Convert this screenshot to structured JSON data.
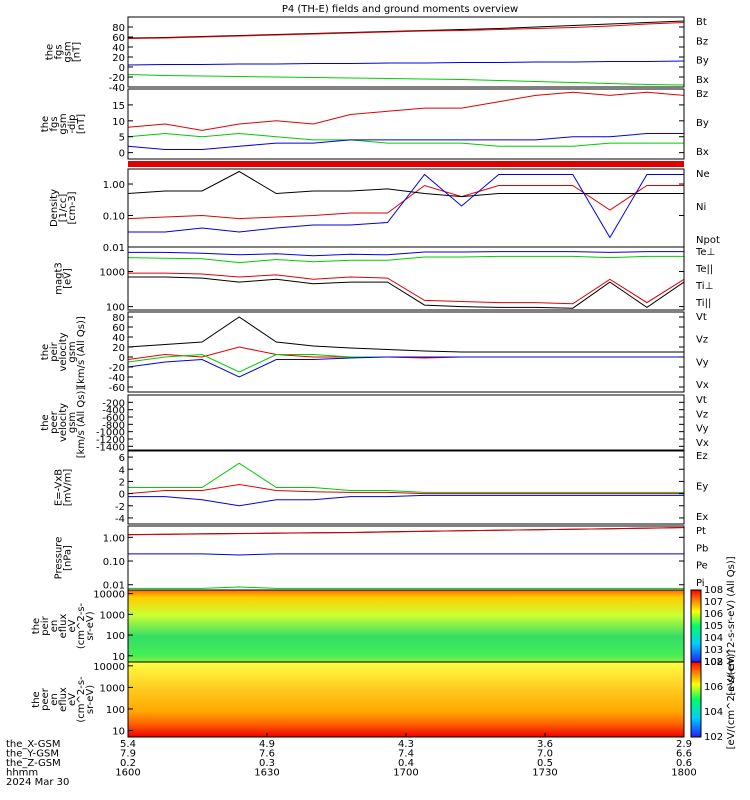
{
  "title": "P4 (TH-E) fields and ground moments overview",
  "colors": {
    "black": "#000000",
    "red": "#e00000",
    "green": "#00cc00",
    "blue": "#0000dd",
    "blue_light": "#3030ff"
  },
  "chart_data": [
    {
      "type": "line",
      "panel": "fgs_gsm",
      "ylabel": [
        "the",
        "fgs",
        "gsm",
        "[nT]"
      ],
      "ylim": [
        -40,
        100
      ],
      "yticks": [
        -40,
        -20,
        0,
        20,
        40,
        60,
        80
      ],
      "series": [
        {
          "name": "Bt",
          "color": "black",
          "values": [
            58,
            59,
            61,
            63,
            65,
            67,
            69,
            71,
            73,
            75,
            77,
            80,
            83,
            86,
            89,
            92
          ]
        },
        {
          "name": "Bz",
          "color": "red",
          "values": [
            57,
            58,
            60,
            62,
            64,
            66,
            68,
            70,
            72,
            73,
            75,
            77,
            79,
            82,
            86,
            89
          ]
        },
        {
          "name": "By",
          "color": "green",
          "values": [
            -15,
            -17,
            -18,
            -19,
            -20,
            -21,
            -22,
            -23,
            -24,
            -25,
            -27,
            -29,
            -31,
            -33,
            -35,
            -36
          ]
        },
        {
          "name": "Bx",
          "color": "blue",
          "values": [
            4,
            5,
            5,
            6,
            6,
            7,
            7,
            8,
            8,
            9,
            9,
            10,
            10,
            11,
            11,
            12
          ]
        }
      ]
    },
    {
      "type": "line",
      "panel": "fgs_gsm_dip",
      "ylabel": [
        "the",
        "fgs",
        "gsm",
        "-dip",
        "[nT]"
      ],
      "ylim": [
        -2,
        20
      ],
      "yticks": [
        0,
        5,
        10,
        15
      ],
      "series": [
        {
          "name": "Bz",
          "color": "red",
          "values": [
            8,
            9,
            7,
            9,
            10,
            9,
            12,
            13,
            14,
            14,
            16,
            18,
            19,
            18,
            19,
            18
          ]
        },
        {
          "name": "By",
          "color": "green",
          "values": [
            5,
            6,
            5,
            6,
            5,
            4,
            4,
            3,
            3,
            3,
            2,
            2,
            2,
            3,
            3,
            3
          ]
        },
        {
          "name": "Bx",
          "color": "blue",
          "values": [
            2,
            1,
            1,
            2,
            3,
            3,
            4,
            4,
            4,
            4,
            4,
            4,
            5,
            5,
            6,
            6
          ]
        }
      ]
    },
    {
      "type": "line",
      "panel": "density",
      "log": true,
      "ylabel": [
        "Density",
        "[1/cc]",
        "[cm-3]"
      ],
      "ylim": [
        0.01,
        3
      ],
      "yticks": [
        "0.01",
        "0.10",
        "1.00"
      ],
      "series": [
        {
          "name": "Ne",
          "color": "red",
          "values": [
            0.08,
            0.09,
            0.1,
            0.08,
            0.09,
            0.1,
            0.12,
            0.12,
            0.9,
            0.4,
            0.9,
            0.9,
            0.9,
            0.15,
            0.9,
            0.9
          ]
        },
        {
          "name": "Ni",
          "color": "black",
          "values": [
            0.5,
            0.6,
            0.6,
            2.5,
            0.5,
            0.6,
            0.6,
            0.7,
            0.5,
            0.4,
            0.5,
            0.5,
            0.5,
            0.5,
            0.5,
            0.5
          ]
        },
        {
          "name": "Npot",
          "color": "blue",
          "values": [
            0.03,
            0.03,
            0.04,
            0.03,
            0.04,
            0.05,
            0.05,
            0.06,
            2,
            0.2,
            2,
            2,
            2,
            0.02,
            2,
            2
          ]
        }
      ]
    },
    {
      "type": "line",
      "panel": "temperature",
      "log": true,
      "ylabel": [
        "magt3",
        "[eV]"
      ],
      "ylim": [
        80,
        5000
      ],
      "yticks": [
        "100",
        "1000"
      ],
      "series": [
        {
          "name": "Te⊥",
          "color": "red",
          "values": [
            900,
            900,
            850,
            700,
            800,
            600,
            700,
            650,
            150,
            140,
            130,
            130,
            120,
            600,
            130,
            600
          ]
        },
        {
          "name": "Te||",
          "color": "black",
          "values": [
            700,
            700,
            650,
            500,
            600,
            450,
            500,
            500,
            110,
            100,
            95,
            95,
            90,
            500,
            95,
            500
          ]
        },
        {
          "name": "Ti⊥",
          "color": "blue",
          "values": [
            3500,
            3500,
            3300,
            3000,
            3200,
            2800,
            3100,
            3000,
            3600,
            3600,
            3700,
            3700,
            3700,
            3500,
            3700,
            3700
          ]
        },
        {
          "name": "Ti||",
          "color": "green",
          "values": [
            2500,
            2400,
            2300,
            1800,
            2200,
            1900,
            2100,
            2100,
            2600,
            2600,
            2700,
            2700,
            2700,
            2500,
            2700,
            2700
          ]
        }
      ]
    },
    {
      "type": "line",
      "panel": "peir_velocity",
      "ylabel": [
        "the",
        "peir",
        "velocity",
        "gsm",
        "[km/s (All Qs)]"
      ],
      "ylim": [
        -70,
        90
      ],
      "yticks": [
        -60,
        -40,
        -20,
        0,
        20,
        40,
        60,
        80
      ],
      "series": [
        {
          "name": "Vt",
          "color": "black",
          "values": [
            20,
            25,
            30,
            80,
            30,
            22,
            18,
            15,
            12,
            10,
            10,
            10,
            10,
            10,
            10,
            10
          ]
        },
        {
          "name": "Vz",
          "color": "red",
          "values": [
            -5,
            5,
            0,
            20,
            5,
            0,
            0,
            0,
            -2,
            0,
            0,
            0,
            0,
            0,
            0,
            0
          ]
        },
        {
          "name": "Vy",
          "color": "green",
          "values": [
            -10,
            0,
            5,
            -30,
            5,
            5,
            0,
            0,
            0,
            0,
            0,
            0,
            0,
            0,
            0,
            0
          ]
        },
        {
          "name": "Vx",
          "color": "blue",
          "values": [
            -20,
            -10,
            -5,
            -40,
            -5,
            -5,
            -2,
            0,
            0,
            0,
            0,
            0,
            0,
            0,
            0,
            0
          ]
        }
      ]
    },
    {
      "type": "line",
      "panel": "peer_velocity",
      "ylabel": [
        "the",
        "peer",
        "velocity",
        "gsm",
        "[km/s (All Qs)]"
      ],
      "ylim": [
        -1500,
        0
      ],
      "yticks": [
        -1400,
        -1200,
        -1000,
        -800,
        -600,
        -400,
        -200
      ],
      "series": [
        {
          "name": "Vt",
          "color": "black",
          "values": []
        },
        {
          "name": "Vz",
          "color": "red",
          "values": []
        },
        {
          "name": "Vy",
          "color": "green",
          "values": []
        },
        {
          "name": "Vx",
          "color": "blue",
          "values": []
        }
      ]
    },
    {
      "type": "line",
      "panel": "e_field",
      "ylabel": [
        "E=-VxB",
        "[mV/m]"
      ],
      "ylim": [
        -5,
        7
      ],
      "yticks": [
        -4,
        -2,
        0,
        2,
        4,
        6
      ],
      "series": [
        {
          "name": "Ez",
          "color": "red",
          "values": [
            0,
            0.5,
            0.5,
            1.5,
            0.5,
            0.3,
            0.2,
            0.2,
            0,
            0,
            0,
            0,
            0,
            0,
            0,
            0
          ]
        },
        {
          "name": "Ey",
          "color": "green",
          "values": [
            1,
            1,
            1,
            5,
            1,
            1,
            0.5,
            0.5,
            0.2,
            0.2,
            0.2,
            0.2,
            0.2,
            0.2,
            0.2,
            0.2
          ]
        },
        {
          "name": "Ex",
          "color": "blue",
          "values": [
            -0.5,
            -0.5,
            -1,
            -2,
            -1,
            -1,
            -0.5,
            -0.5,
            -0.3,
            -0.3,
            -0.3,
            -0.3,
            -0.3,
            -0.3,
            -0.3,
            -0.3
          ]
        }
      ]
    },
    {
      "type": "line",
      "panel": "pressure",
      "log": true,
      "ylabel": [
        "Pressure",
        "[nPa]"
      ],
      "ylim": [
        0.006,
        3
      ],
      "yticks": [
        "0.01",
        "0.10",
        "1.00"
      ],
      "series": [
        {
          "name": "Pt",
          "color": "black",
          "values": [
            1.3,
            1.35,
            1.4,
            1.45,
            1.5,
            1.55,
            1.6,
            1.7,
            1.8,
            1.9,
            2,
            2.1,
            2.2,
            2.3,
            2.45,
            2.6
          ]
        },
        {
          "name": "Pb",
          "color": "red",
          "values": [
            1.28,
            1.33,
            1.38,
            1.43,
            1.48,
            1.53,
            1.58,
            1.68,
            1.78,
            1.88,
            1.98,
            2.08,
            2.18,
            2.28,
            2.43,
            2.58
          ]
        },
        {
          "name": "Pe",
          "color": "green",
          "values": [
            0.007,
            0.007,
            0.007,
            0.008,
            0.007,
            0.007,
            0.007,
            0.007,
            0.007,
            0.007,
            0.007,
            0.007,
            0.007,
            0.007,
            0.007,
            0.007
          ]
        },
        {
          "name": "Pi",
          "color": "blue",
          "values": [
            0.2,
            0.2,
            0.2,
            0.18,
            0.2,
            0.2,
            0.2,
            0.2,
            0.2,
            0.2,
            0.2,
            0.2,
            0.2,
            0.2,
            0.2,
            0.2
          ]
        }
      ]
    },
    {
      "type": "heatmap",
      "panel": "peir_en_eflux",
      "ylabel": [
        "the",
        "peir",
        "en",
        "eflux",
        "eV",
        "(cm^2-s-",
        "sr-eV)"
      ],
      "yticks": [
        "10",
        "100",
        "1000",
        "10000"
      ],
      "colorbar": {
        "label": "[eV/(cm^2-s-sr-eV) (All Qs)]",
        "ticks": [
          "10^2",
          "10^3",
          "10^4",
          "10^5",
          "10^6",
          "10^7",
          "10^8"
        ]
      }
    },
    {
      "type": "heatmap",
      "panel": "peer_en_eflux",
      "ylabel": [
        "the",
        "peer",
        "en",
        "eflux",
        "eV",
        "(cm^2-s-",
        "sr-eV)"
      ],
      "yticks": [
        "10",
        "100",
        "1000",
        "10000"
      ],
      "colorbar": {
        "label": "[eV/(cm^2-s-sr-eV)]",
        "ticks": [
          "10^2",
          "10^4",
          "10^6",
          "10^8"
        ]
      }
    }
  ],
  "x_axis": {
    "rows": [
      {
        "label": "the_X-GSM",
        "values": [
          "5.4",
          "4.9",
          "4.3",
          "3.6",
          "2.9"
        ]
      },
      {
        "label": "the_Y-GSM",
        "values": [
          "7.9",
          "7.6",
          "7.4",
          "7.0",
          "6.6"
        ]
      },
      {
        "label": "the_Z-GSM",
        "values": [
          "0.2",
          "0.3",
          "0.4",
          "0.5",
          "0.6"
        ]
      },
      {
        "label": "hhmm",
        "values": [
          "1600",
          "1630",
          "1700",
          "1730",
          "1800"
        ]
      }
    ],
    "date": "2024 Mar 30"
  }
}
